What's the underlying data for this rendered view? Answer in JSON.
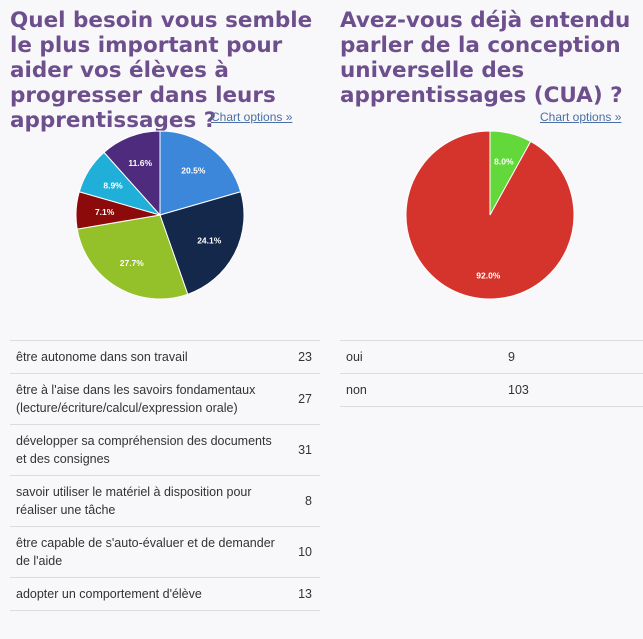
{
  "chart_data": [
    {
      "type": "pie",
      "title": "Quel besoin vous semble le plus important pour aider vos élèves à progresser dans leurs apprentissages ?",
      "chart_options_label": "Chart options »",
      "categories": [
        "être autonome dans son travail",
        "être à l'aise dans les savoirs fondamentaux (lecture/écriture/calcul/expression orale)",
        "développer sa compréhension des documents et des consignes",
        "savoir utiliser le matériel à disposition pour réaliser une tâche",
        "être capable de s'auto-évaluer et de demander de l'aide",
        "adopter un comportement d'élève"
      ],
      "values": [
        23,
        27,
        31,
        8,
        10,
        13
      ],
      "percent_labels": [
        "20.5%",
        "24.1%",
        "27.7%",
        "7.1%",
        "8.9%",
        "11.6%"
      ],
      "colors": [
        "#3d87db",
        "#13284a",
        "#94c12a",
        "#8c0a0a",
        "#1fafd8",
        "#4e2b7c"
      ]
    },
    {
      "type": "pie",
      "title": "Avez-vous déjà entendu parler de la conception universelle des apprentissages (CUA) ?",
      "chart_options_label": "Chart options »",
      "categories": [
        "oui",
        "non"
      ],
      "values": [
        9,
        103
      ],
      "percent_labels": [
        "8.0%",
        "92.0%"
      ],
      "colors": [
        "#63d83a",
        "#d4342c"
      ]
    }
  ]
}
